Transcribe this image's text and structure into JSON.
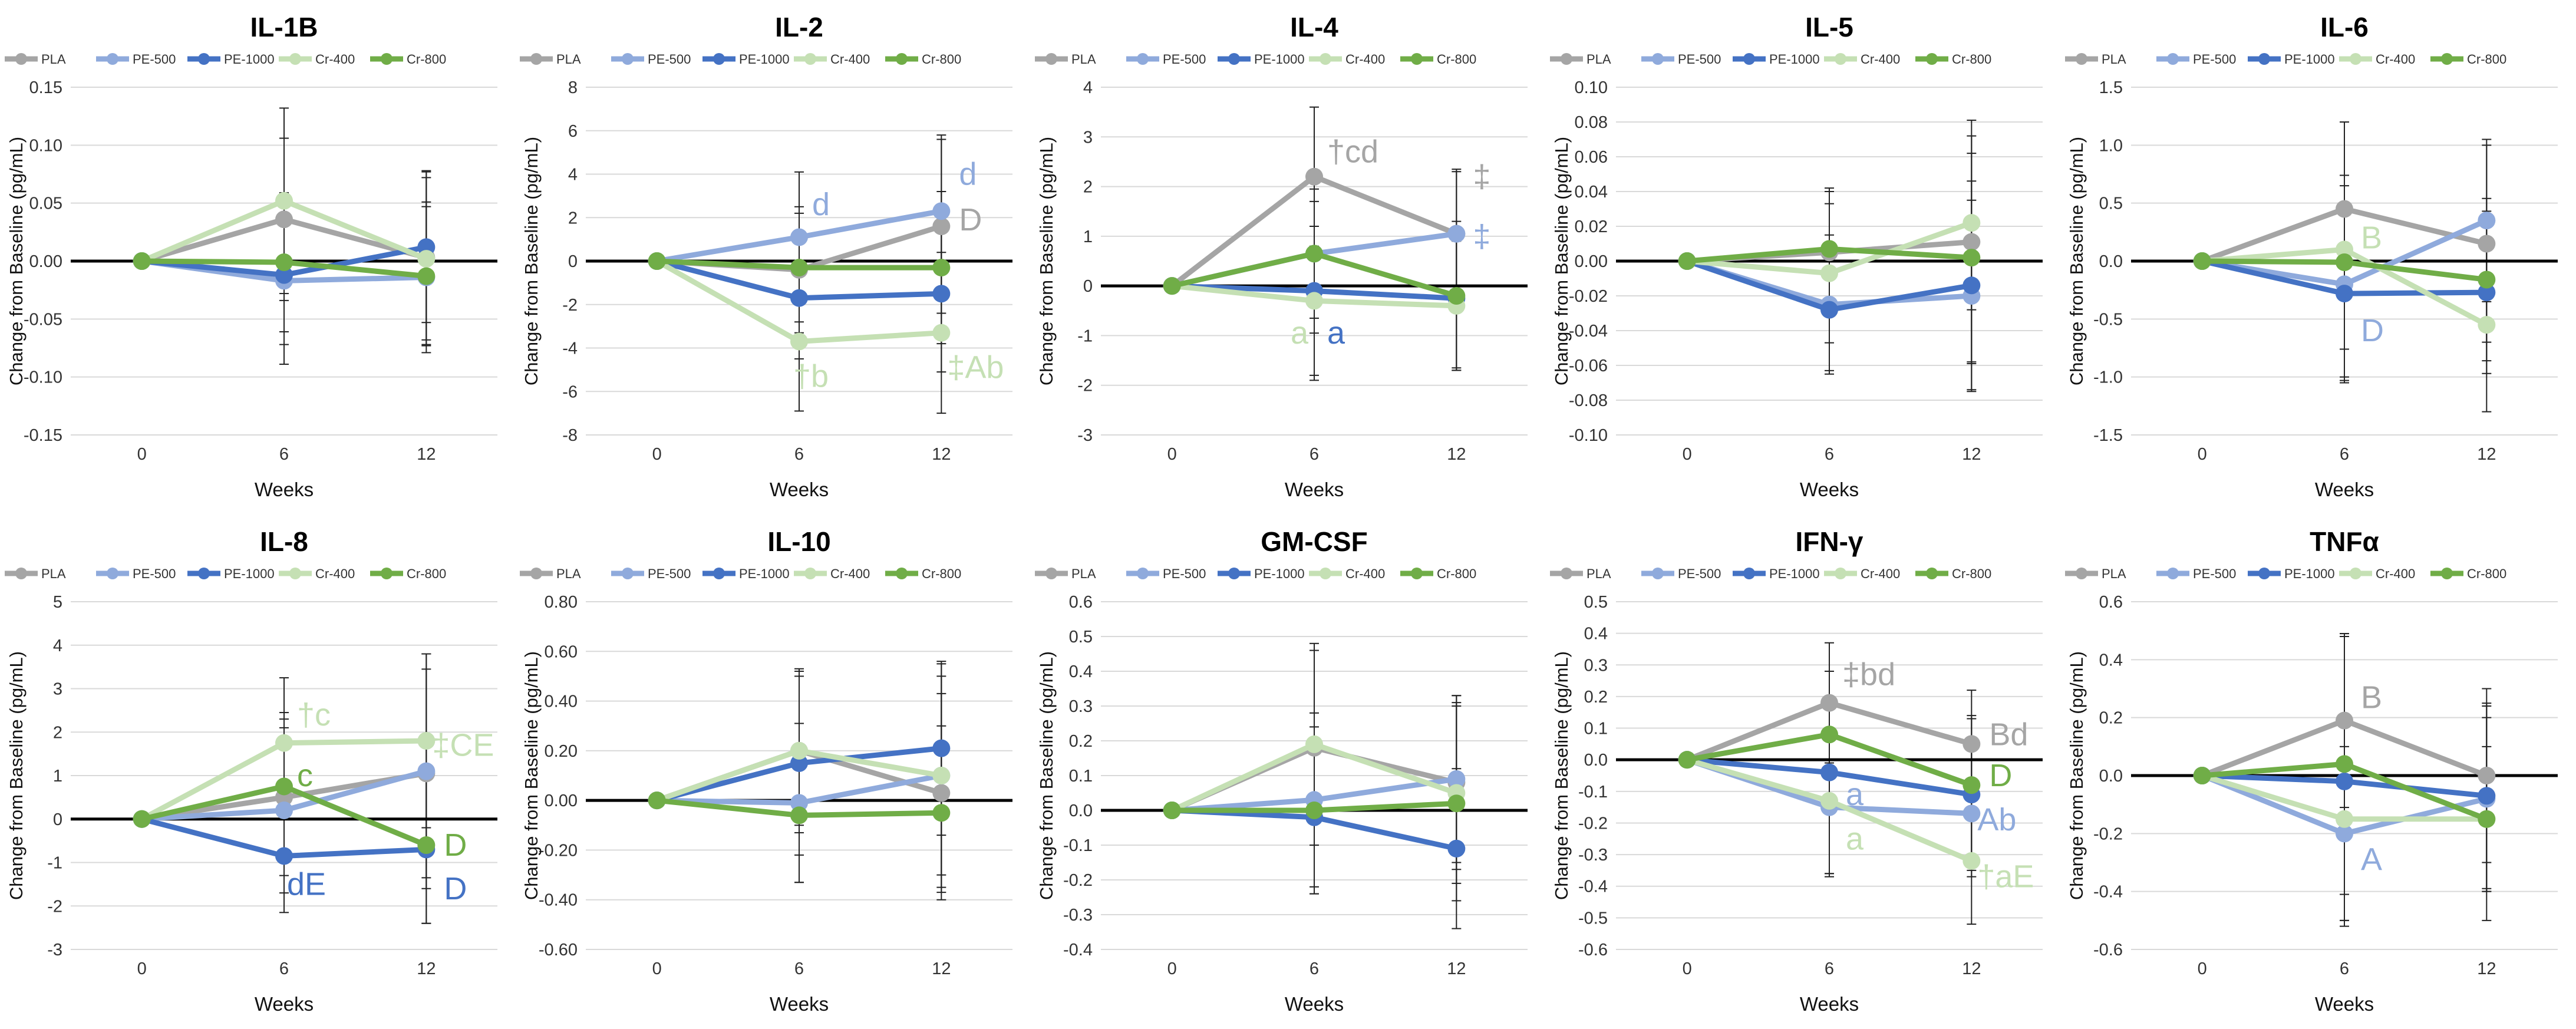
{
  "series_styles": [
    {
      "name": "PLA",
      "color": "#A5A5A5"
    },
    {
      "name": "PE-500",
      "color": "#8FAADC"
    },
    {
      "name": "PE-1000",
      "color": "#4472C4"
    },
    {
      "name": "Cr-400",
      "color": "#C5E0B4"
    },
    {
      "name": "Cr-800",
      "color": "#70AD47"
    }
  ],
  "chart_data": [
    {
      "type": "line",
      "title": "IL-1B",
      "xlabel": "Weeks",
      "ylabel": "Change from Baseline (pg/mL)",
      "x": [
        "0",
        "6",
        "12"
      ],
      "ylim": [
        -0.15,
        0.15
      ],
      "ystep": 0.05,
      "yticks": [
        "-0.15",
        "-0.10",
        "-0.05",
        "0.00",
        "0.05",
        "0.10",
        "0.15"
      ],
      "series": [
        {
          "name": "PLA",
          "values": [
            0,
            0.036,
            0.003
          ],
          "err": [
            0,
            0.07,
            0.075
          ]
        },
        {
          "name": "PE-500",
          "values": [
            0,
            -0.017,
            -0.014
          ],
          "err": [
            0,
            0.072,
            0.065
          ]
        },
        {
          "name": "PE-1000",
          "values": [
            0,
            -0.012,
            0.012
          ],
          "err": [
            0,
            0.06,
            0.065
          ]
        },
        {
          "name": "Cr-400",
          "values": [
            0,
            0.052,
            0.002
          ],
          "err": [
            0,
            0.08,
            0.07
          ]
        },
        {
          "name": "Cr-800",
          "values": [
            0,
            -0.001,
            -0.013
          ],
          "err": [
            0,
            0.06,
            0.06
          ]
        }
      ],
      "annotations": []
    },
    {
      "type": "line",
      "title": "IL-2",
      "xlabel": "Weeks",
      "ylabel": "Change from Baseline (pg/mL)",
      "x": [
        "0",
        "6",
        "12"
      ],
      "ylim": [
        -8,
        8
      ],
      "ystep": 2,
      "yticks": [
        "-8",
        "-6",
        "-4",
        "-2",
        "0",
        "2",
        "4",
        "6",
        "8"
      ],
      "series": [
        {
          "name": "PLA",
          "values": [
            0,
            -0.4,
            1.6
          ],
          "err": [
            0,
            2.9,
            4.0
          ]
        },
        {
          "name": "PE-500",
          "values": [
            0,
            1.1,
            2.3
          ],
          "err": [
            0,
            3.0,
            3.5
          ]
        },
        {
          "name": "PE-1000",
          "values": [
            0,
            -1.7,
            -1.5
          ],
          "err": [
            0,
            2.8,
            3.6
          ]
        },
        {
          "name": "Cr-400",
          "values": [
            0,
            -3.7,
            -3.3
          ],
          "err": [
            0,
            3.2,
            3.7
          ]
        },
        {
          "name": "Cr-800",
          "values": [
            0,
            -0.3,
            -0.3
          ],
          "err": [
            0,
            2.5,
            3.5
          ]
        }
      ],
      "annotations": [
        {
          "series": "PE-500",
          "xi": 1,
          "y": 2.6,
          "dx": 22,
          "text": "d"
        },
        {
          "series": "PE-500",
          "xi": 2,
          "y": 4.0,
          "dx": 30,
          "text": "d"
        },
        {
          "series": "PLA",
          "xi": 2,
          "y": 1.9,
          "dx": 30,
          "text": "D"
        },
        {
          "series": "Cr-400",
          "xi": 1,
          "y": -5.3,
          "dx": -10,
          "text": "†b"
        },
        {
          "series": "Cr-400",
          "xi": 2,
          "y": -4.9,
          "dx": 10,
          "text": "‡Ab"
        }
      ]
    },
    {
      "type": "line",
      "title": "IL-4",
      "xlabel": "Weeks",
      "ylabel": "Change from Baseline (pg/mL)",
      "x": [
        "0",
        "6",
        "12"
      ],
      "ylim": [
        -3,
        4
      ],
      "ystep": 1,
      "yticks": [
        "-3",
        "-2",
        "-1",
        "0",
        "1",
        "2",
        "3",
        "4"
      ],
      "series": [
        {
          "name": "PLA",
          "values": [
            0,
            2.2,
            1.05
          ],
          "err": [
            0,
            1.4,
            1.25
          ]
        },
        {
          "name": "PE-500",
          "values": [
            0,
            0.65,
            1.05
          ],
          "err": [
            0,
            1.6,
            1.3
          ]
        },
        {
          "name": "PE-1000",
          "values": [
            0,
            -0.1,
            -0.25
          ],
          "err": [
            0,
            1.8,
            1.4
          ]
        },
        {
          "name": "Cr-400",
          "values": [
            0,
            -0.3,
            -0.4
          ],
          "err": [
            0,
            1.5,
            1.3
          ]
        },
        {
          "name": "Cr-800",
          "values": [
            0,
            0.65,
            -0.2
          ],
          "err": [
            0,
            1.3,
            1.5
          ]
        }
      ],
      "annotations": [
        {
          "series": "PLA",
          "xi": 1,
          "y": 2.7,
          "dx": 22,
          "text": "†cd"
        },
        {
          "series": "PLA",
          "xi": 2,
          "y": 2.2,
          "dx": 28,
          "text": "‡"
        },
        {
          "series": "PE-500",
          "xi": 2,
          "y": 1.0,
          "dx": 28,
          "text": "‡"
        },
        {
          "series": "Cr-400",
          "xi": 1,
          "y": -0.95,
          "dx": -40,
          "text": "a"
        },
        {
          "series": "PE-1000",
          "xi": 1,
          "y": -0.95,
          "dx": 22,
          "text": "a"
        }
      ]
    },
    {
      "type": "line",
      "title": "IL-5",
      "xlabel": "Weeks",
      "ylabel": "Change from Baseline (pg/mL)",
      "x": [
        "0",
        "6",
        "12"
      ],
      "ylim": [
        -0.1,
        0.1
      ],
      "ystep": 0.02,
      "yticks": [
        "-0.10",
        "-0.08",
        "-0.06",
        "-0.04",
        "-0.02",
        "0.00",
        "0.02",
        "0.04",
        "0.06",
        "0.08",
        "0.10"
      ],
      "series": [
        {
          "name": "PLA",
          "values": [
            0,
            0.005,
            0.011
          ],
          "err": [
            0,
            0.035,
            0.07
          ]
        },
        {
          "name": "PE-500",
          "values": [
            0,
            -0.025,
            -0.02
          ],
          "err": [
            0,
            0.04,
            0.055
          ]
        },
        {
          "name": "PE-1000",
          "values": [
            0,
            -0.028,
            -0.014
          ],
          "err": [
            0,
            0.035,
            0.06
          ]
        },
        {
          "name": "Cr-400",
          "values": [
            0,
            -0.007,
            0.022
          ],
          "err": [
            0,
            0.04,
            0.05
          ]
        },
        {
          "name": "Cr-800",
          "values": [
            0,
            0.007,
            0.002
          ],
          "err": [
            0,
            0.035,
            0.06
          ]
        }
      ],
      "annotations": []
    },
    {
      "type": "line",
      "title": "IL-6",
      "xlabel": "Weeks",
      "ylabel": "Change from Baseline (pg/mL)",
      "x": [
        "0",
        "6",
        "12"
      ],
      "ylim": [
        -1.5,
        1.5
      ],
      "ystep": 0.5,
      "yticks": [
        "-1.5",
        "-1.0",
        "-0.5",
        "0.0",
        "0.5",
        "1.0",
        "1.5"
      ],
      "series": [
        {
          "name": "PLA",
          "values": [
            0,
            0.45,
            0.15
          ],
          "err": [
            0,
            0.75,
            0.85
          ]
        },
        {
          "name": "PE-500",
          "values": [
            0,
            -0.2,
            0.35
          ],
          "err": [
            0,
            0.85,
            0.7
          ]
        },
        {
          "name": "PE-1000",
          "values": [
            0,
            -0.28,
            -0.27
          ],
          "err": [
            0,
            0.75,
            0.7
          ]
        },
        {
          "name": "Cr-400",
          "values": [
            0,
            0.1,
            -0.55
          ],
          "err": [
            0,
            1.1,
            0.75
          ]
        },
        {
          "name": "Cr-800",
          "values": [
            0,
            -0.01,
            -0.16
          ],
          "err": [
            0,
            0.75,
            0.7
          ]
        }
      ],
      "annotations": [
        {
          "series": "Cr-400",
          "xi": 1,
          "y": 0.2,
          "dx": 28,
          "text": "B"
        },
        {
          "series": "PE-500",
          "xi": 1,
          "y": -0.6,
          "dx": 28,
          "text": "D"
        }
      ]
    },
    {
      "type": "line",
      "title": "IL-8",
      "xlabel": "Weeks",
      "ylabel": "Change from Baseline (pg/mL)",
      "x": [
        "0",
        "6",
        "12"
      ],
      "ylim": [
        -3,
        5
      ],
      "ystep": 1,
      "yticks": [
        "-3",
        "-2",
        "-1",
        "0",
        "1",
        "2",
        "3",
        "4",
        "5"
      ],
      "series": [
        {
          "name": "PLA",
          "values": [
            0,
            0.5,
            1.05
          ],
          "err": [
            0,
            1.8,
            2.4
          ]
        },
        {
          "name": "PE-500",
          "values": [
            0,
            0.2,
            1.1
          ],
          "err": [
            0,
            1.9,
            2.7
          ]
        },
        {
          "name": "PE-1000",
          "values": [
            0,
            -0.85,
            -0.7
          ],
          "err": [
            0,
            1.3,
            1.7
          ]
        },
        {
          "name": "Cr-400",
          "values": [
            0,
            1.75,
            1.8
          ],
          "err": [
            0,
            1.5,
            2.0
          ]
        },
        {
          "name": "Cr-800",
          "values": [
            0,
            0.75,
            -0.6
          ],
          "err": [
            0,
            1.7,
            1.8
          ]
        }
      ],
      "annotations": [
        {
          "series": "Cr-400",
          "xi": 1,
          "y": 2.4,
          "dx": 22,
          "text": "†c"
        },
        {
          "series": "Cr-800",
          "xi": 1,
          "y": 1.0,
          "dx": 22,
          "text": "c"
        },
        {
          "series": "Cr-400",
          "xi": 2,
          "y": 1.7,
          "dx": 10,
          "text": "‡CE"
        },
        {
          "series": "PE-1000",
          "xi": 1,
          "y": -1.5,
          "dx": 5,
          "text": "dE"
        },
        {
          "series": "Cr-800",
          "xi": 2,
          "y": -0.6,
          "dx": 30,
          "text": "D"
        },
        {
          "series": "PE-1000",
          "xi": 2,
          "y": -1.6,
          "dx": 30,
          "text": "D"
        }
      ]
    },
    {
      "type": "line",
      "title": "IL-10",
      "xlabel": "Weeks",
      "ylabel": "Change from Baseline (pg/mL)",
      "x": [
        "0",
        "6",
        "12"
      ],
      "ylim": [
        -0.6,
        0.8
      ],
      "ystep": 0.2,
      "yticks": [
        "-0.60",
        "-0.40",
        "-0.20",
        "0.00",
        "0.20",
        "0.40",
        "0.60",
        "0.80"
      ],
      "series": [
        {
          "name": "PLA",
          "values": [
            0,
            0.2,
            0.03
          ],
          "err": [
            0,
            0.33,
            0.4
          ]
        },
        {
          "name": "PE-500",
          "values": [
            0,
            -0.01,
            0.1
          ],
          "err": [
            0,
            0.32,
            0.4
          ]
        },
        {
          "name": "PE-1000",
          "values": [
            0,
            0.15,
            0.21
          ],
          "err": [
            0,
            0.37,
            0.35
          ]
        },
        {
          "name": "Cr-400",
          "values": [
            0,
            0.2,
            0.1
          ],
          "err": [
            0,
            0.3,
            0.45
          ]
        },
        {
          "name": "Cr-800",
          "values": [
            0,
            -0.06,
            -0.05
          ],
          "err": [
            0,
            0.27,
            0.35
          ]
        }
      ],
      "annotations": []
    },
    {
      "type": "line",
      "title": "GM-CSF",
      "xlabel": "Weeks",
      "ylabel": "Change from Baseline (pg/mL)",
      "x": [
        "0",
        "6",
        "12"
      ],
      "ylim": [
        -0.4,
        0.6
      ],
      "ystep": 0.1,
      "yticks": [
        "-0.4",
        "-0.3",
        "-0.2",
        "-0.1",
        "0.0",
        "0.1",
        "0.2",
        "0.3",
        "0.4",
        "0.5",
        "0.6"
      ],
      "series": [
        {
          "name": "PLA",
          "values": [
            0,
            0.18,
            0.08
          ],
          "err": [
            0,
            0.28,
            0.25
          ]
        },
        {
          "name": "PE-500",
          "values": [
            0,
            0.03,
            0.09
          ],
          "err": [
            0,
            0.25,
            0.24
          ]
        },
        {
          "name": "PE-1000",
          "values": [
            0,
            -0.02,
            -0.11
          ],
          "err": [
            0,
            0.22,
            0.23
          ]
        },
        {
          "name": "Cr-400",
          "values": [
            0,
            0.19,
            0.05
          ],
          "err": [
            0,
            0.29,
            0.26
          ]
        },
        {
          "name": "Cr-800",
          "values": [
            0,
            0.0,
            0.02
          ],
          "err": [
            0,
            0.24,
            0.28
          ]
        }
      ],
      "annotations": []
    },
    {
      "type": "line",
      "title": "IFN-γ",
      "xlabel": "Weeks",
      "ylabel": "Change from Baseline (pg/mL)",
      "x": [
        "0",
        "6",
        "12"
      ],
      "ylim": [
        -0.6,
        0.5
      ],
      "ystep": 0.1,
      "yticks": [
        "-0.6",
        "-0.5",
        "-0.4",
        "-0.3",
        "-0.2",
        "-0.1",
        "0.0",
        "0.1",
        "0.2",
        "0.3",
        "0.4",
        "0.5"
      ],
      "series": [
        {
          "name": "PLA",
          "values": [
            0,
            0.18,
            0.05
          ],
          "err": [
            0,
            0.19,
            0.17
          ]
        },
        {
          "name": "PE-500",
          "values": [
            0,
            -0.15,
            -0.17
          ],
          "err": [
            0,
            0.22,
            0.2
          ]
        },
        {
          "name": "PE-1000",
          "values": [
            0,
            -0.04,
            -0.11
          ],
          "err": [
            0,
            0.32,
            0.24
          ]
        },
        {
          "name": "Cr-400",
          "values": [
            0,
            -0.13,
            -0.32
          ],
          "err": [
            0,
            0.23,
            0.2
          ]
        },
        {
          "name": "Cr-800",
          "values": [
            0,
            0.08,
            -0.08
          ],
          "err": [
            0,
            0.2,
            0.22
          ]
        }
      ],
      "annotations": [
        {
          "series": "PLA",
          "xi": 1,
          "y": 0.27,
          "dx": 22,
          "text": "‡bd"
        },
        {
          "series": "PLA",
          "xi": 2,
          "y": 0.08,
          "dx": 30,
          "text": "Bd"
        },
        {
          "series": "Cr-800",
          "xi": 2,
          "y": -0.05,
          "dx": 30,
          "text": "D"
        },
        {
          "series": "PE-500",
          "xi": 1,
          "y": -0.11,
          "dx": 28,
          "text": "a"
        },
        {
          "series": "Cr-400",
          "xi": 1,
          "y": -0.25,
          "dx": 28,
          "text": "a"
        },
        {
          "series": "PE-500",
          "xi": 2,
          "y": -0.19,
          "dx": 10,
          "text": "Ab"
        },
        {
          "series": "Cr-400",
          "xi": 2,
          "y": -0.37,
          "dx": 10,
          "text": "†aE"
        }
      ]
    },
    {
      "type": "line",
      "title": "TNFα",
      "xlabel": "Weeks",
      "ylabel": "Change from Baseline (pg/mL)",
      "x": [
        "0",
        "6",
        "12"
      ],
      "ylim": [
        -0.6,
        0.6
      ],
      "ystep": 0.2,
      "yticks": [
        "-0.6",
        "-0.4",
        "-0.2",
        "0.0",
        "0.2",
        "0.4",
        "0.6"
      ],
      "series": [
        {
          "name": "PLA",
          "values": [
            0,
            0.19,
            0.0
          ],
          "err": [
            0,
            0.3,
            0.3
          ]
        },
        {
          "name": "PE-500",
          "values": [
            0,
            -0.2,
            -0.08
          ],
          "err": [
            0,
            0.3,
            0.32
          ]
        },
        {
          "name": "PE-1000",
          "values": [
            0,
            -0.02,
            -0.07
          ],
          "err": [
            0,
            0.5,
            0.32
          ]
        },
        {
          "name": "Cr-400",
          "values": [
            0,
            -0.15,
            -0.15
          ],
          "err": [
            0,
            0.35,
            0.35
          ]
        },
        {
          "name": "Cr-800",
          "values": [
            0,
            0.04,
            -0.15
          ],
          "err": [
            0,
            0.45,
            0.25
          ]
        }
      ],
      "annotations": [
        {
          "series": "PLA",
          "xi": 1,
          "y": 0.27,
          "dx": 28,
          "text": "B"
        },
        {
          "series": "PE-500",
          "xi": 1,
          "y": -0.29,
          "dx": 28,
          "text": "A"
        }
      ]
    }
  ]
}
